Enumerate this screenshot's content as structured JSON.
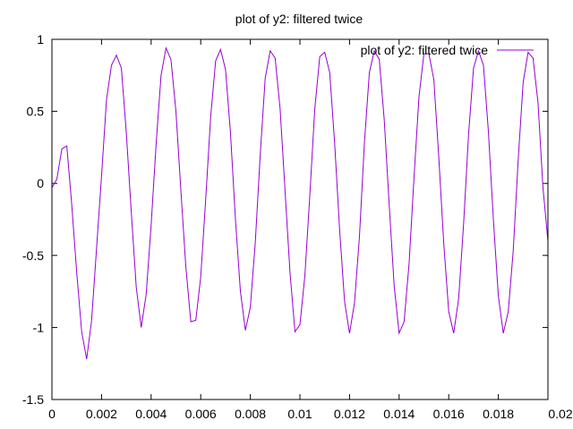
{
  "colors": {
    "series": "#9400d3",
    "axis": "#000000",
    "background": "#ffffff"
  },
  "chart_data": {
    "type": "line",
    "title": "plot of y2: filtered twice",
    "xlabel": "",
    "ylabel": "",
    "xlim": [
      0,
      0.02
    ],
    "ylim": [
      -1.5,
      1
    ],
    "x_ticks": [
      0,
      0.002,
      0.004,
      0.006,
      0.008,
      0.01,
      0.012,
      0.014,
      0.016,
      0.018,
      0.02
    ],
    "x_tick_labels": [
      "0",
      "0.002",
      "0.004",
      "0.006",
      "0.008",
      "0.01",
      "0.012",
      "0.014",
      "0.016",
      "0.018",
      "0.02"
    ],
    "y_ticks": [
      -1.5,
      -1,
      -0.5,
      0,
      0.5,
      1
    ],
    "y_tick_labels": [
      "-1.5",
      "-1",
      "-0.5",
      "0",
      "0.5",
      "1"
    ],
    "grid": false,
    "legend_position": "top-right",
    "series": [
      {
        "name": "plot of y2: filtered twice",
        "color": "#9400d3",
        "x": [
          0,
          0.0002,
          0.0004,
          0.0006,
          0.0008,
          0.001,
          0.0012,
          0.0014,
          0.0016,
          0.0018,
          0.002,
          0.0022,
          0.0024,
          0.0026,
          0.0028,
          0.003,
          0.0032,
          0.0034,
          0.0036,
          0.0038,
          0.004,
          0.0042,
          0.0044,
          0.0046,
          0.0048,
          0.005,
          0.0052,
          0.0054,
          0.0056,
          0.0058,
          0.006,
          0.0062,
          0.0064,
          0.0066,
          0.0068,
          0.007,
          0.0072,
          0.0074,
          0.0076,
          0.0078,
          0.008,
          0.0082,
          0.0084,
          0.0086,
          0.0088,
          0.009,
          0.0092,
          0.0094,
          0.0096,
          0.0098,
          0.01,
          0.0102,
          0.0104,
          0.0106,
          0.0108,
          0.011,
          0.0112,
          0.0114,
          0.0116,
          0.0118,
          0.012,
          0.0122,
          0.0124,
          0.0126,
          0.0128,
          0.013,
          0.0132,
          0.0134,
          0.0136,
          0.0138,
          0.014,
          0.0142,
          0.0144,
          0.0146,
          0.0148,
          0.015,
          0.0152,
          0.0154,
          0.0156,
          0.0158,
          0.016,
          0.0162,
          0.0164,
          0.0166,
          0.0168,
          0.017,
          0.0172,
          0.0174,
          0.0176,
          0.0178,
          0.018,
          0.0182,
          0.0184,
          0.0186,
          0.0188,
          0.019,
          0.0192,
          0.0194,
          0.0196,
          0.0198,
          0.02
        ],
        "y": [
          -0.03,
          0.03,
          0.24,
          0.26,
          -0.15,
          -0.62,
          -1.03,
          -1.22,
          -0.95,
          -0.45,
          0.05,
          0.58,
          0.82,
          0.89,
          0.8,
          0.35,
          -0.2,
          -0.72,
          -1.0,
          -0.77,
          -0.29,
          0.27,
          0.75,
          0.94,
          0.86,
          0.5,
          -0.05,
          -0.58,
          -0.96,
          -0.95,
          -0.65,
          -0.11,
          0.46,
          0.85,
          0.93,
          0.79,
          0.35,
          -0.25,
          -0.75,
          -1.02,
          -0.86,
          -0.41,
          0.2,
          0.73,
          0.92,
          0.87,
          0.52,
          -0.05,
          -0.62,
          -1.03,
          -0.98,
          -0.64,
          -0.08,
          0.52,
          0.88,
          0.91,
          0.77,
          0.28,
          -0.32,
          -0.82,
          -1.04,
          -0.83,
          -0.37,
          0.28,
          0.77,
          0.92,
          0.86,
          0.44,
          -0.15,
          -0.71,
          -1.04,
          -0.96,
          -0.56,
          0.04,
          0.6,
          0.9,
          0.9,
          0.72,
          0.18,
          -0.42,
          -0.89,
          -1.04,
          -0.8,
          -0.28,
          0.34,
          0.8,
          0.92,
          0.82,
          0.36,
          -0.25,
          -0.78,
          -1.04,
          -0.89,
          -0.47,
          0.16,
          0.7,
          0.91,
          0.87,
          0.56,
          -0.03,
          -0.4
        ]
      }
    ]
  }
}
